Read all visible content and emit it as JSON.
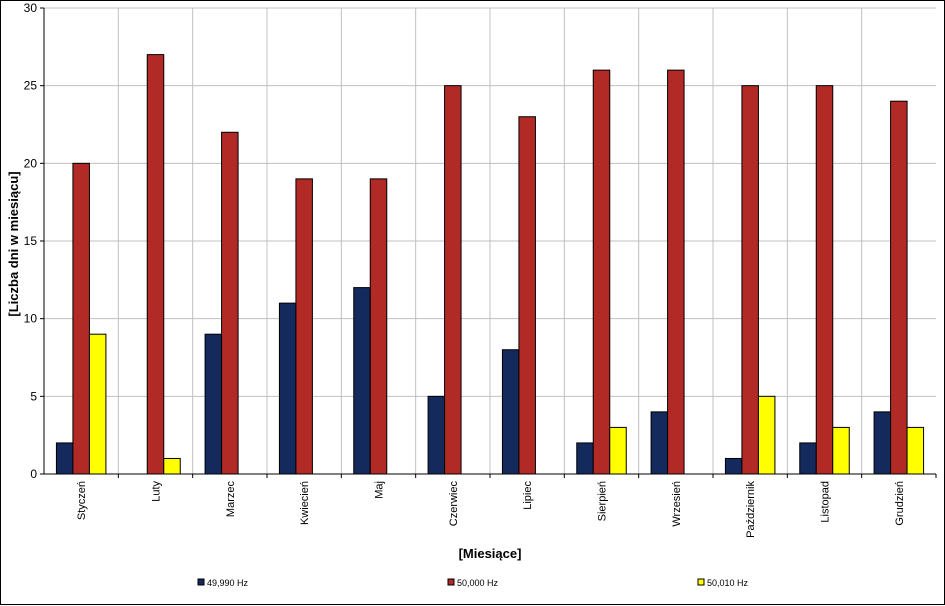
{
  "chart_data": {
    "type": "bar",
    "xlabel": "[Miesiące]",
    "ylabel": "[Liczba dni w miesiącu]",
    "ylim": [
      0,
      30
    ],
    "yticks": [
      0,
      5,
      10,
      15,
      20,
      25,
      30
    ],
    "grid": true,
    "legend_position": "bottom",
    "categories": [
      "Styczeń",
      "Luty",
      "Marzec",
      "Kwiecień",
      "Maj",
      "Czerwiec",
      "Lipiec",
      "Sierpień",
      "Wrzesień",
      "Październik",
      "Listopad",
      "Grudzień"
    ],
    "series": [
      {
        "name": "49,990 Hz",
        "color": "#14295c",
        "values": [
          2,
          0,
          9,
          11,
          12,
          5,
          8,
          2,
          4,
          1,
          2,
          4
        ]
      },
      {
        "name": "50,000 Hz",
        "color": "#b22a26",
        "values": [
          20,
          27,
          22,
          19,
          19,
          25,
          23,
          26,
          26,
          25,
          25,
          24
        ]
      },
      {
        "name": "50,010 Hz",
        "color": "#ffff00",
        "values": [
          9,
          1,
          0,
          0,
          0,
          0,
          0,
          3,
          0,
          5,
          3,
          3
        ]
      }
    ]
  }
}
